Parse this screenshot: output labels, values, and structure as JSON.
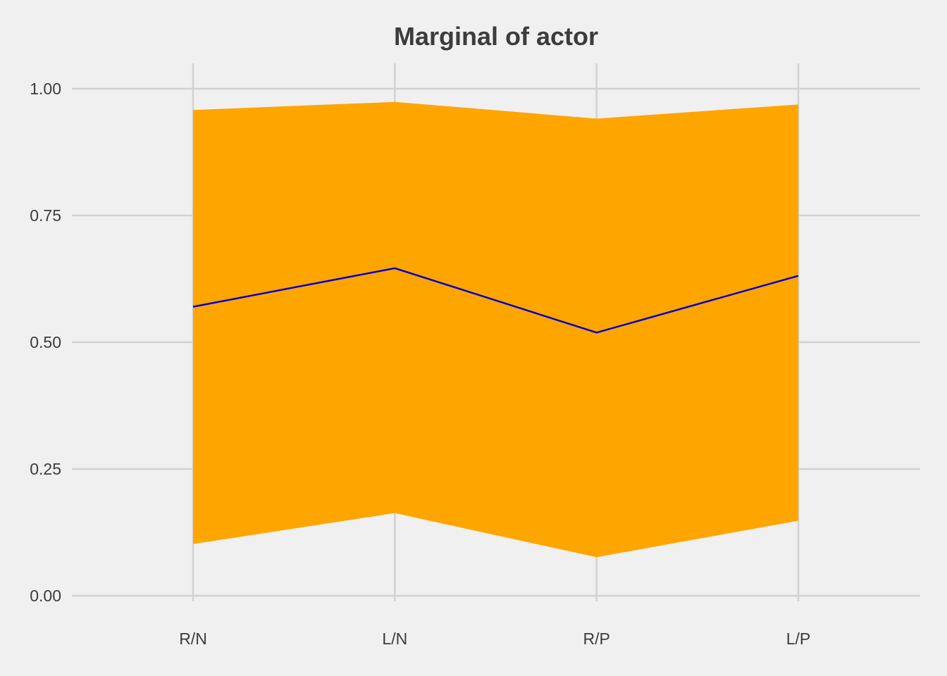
{
  "chart_data": {
    "type": "area",
    "title": "Marginal of actor",
    "xlabel": "",
    "ylabel": "",
    "categories": [
      "R/N",
      "L/N",
      "R/P",
      "L/P"
    ],
    "series": [
      {
        "values": [
          0.57,
          0.646,
          0.519,
          0.631
        ],
        "lower": [
          0.102,
          0.163,
          0.076,
          0.148
        ],
        "upper": [
          0.958,
          0.974,
          0.941,
          0.969
        ]
      }
    ],
    "ylim": [
      0,
      1
    ],
    "yticks": [
      "0.00",
      "0.25",
      "0.50",
      "0.75",
      "1.00"
    ],
    "grid": true,
    "colors": {
      "band": "#FFA500",
      "line": "#0000CD",
      "background": "#F0F0F0",
      "grid": "#D2D2D2",
      "text": "#3C3C3C"
    }
  }
}
